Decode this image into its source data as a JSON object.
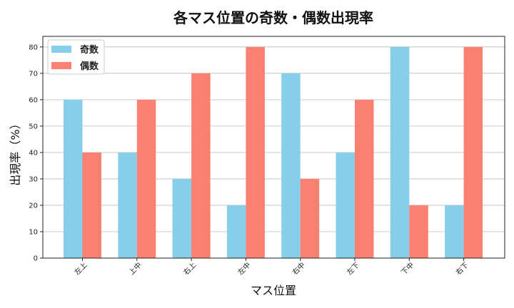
{
  "chart_data": {
    "type": "bar",
    "title": "各マス位置の奇数・偶数出現率",
    "xlabel": "マス位置",
    "ylabel": "出現率（%）",
    "categories": [
      "左上",
      "上中",
      "右上",
      "左中",
      "右中",
      "左下",
      "下中",
      "右下"
    ],
    "series": [
      {
        "name": "奇数",
        "color": "#87ceeb",
        "values": [
          60,
          40,
          30,
          20,
          70,
          40,
          80,
          20
        ]
      },
      {
        "name": "偶数",
        "color": "#fa8072",
        "values": [
          40,
          60,
          70,
          80,
          30,
          60,
          20,
          80
        ]
      }
    ],
    "ylim": [
      0,
      80
    ],
    "yticks": [
      0,
      10,
      20,
      30,
      40,
      50,
      60,
      70,
      80
    ],
    "grid": "y",
    "legend_position": "top-left"
  }
}
